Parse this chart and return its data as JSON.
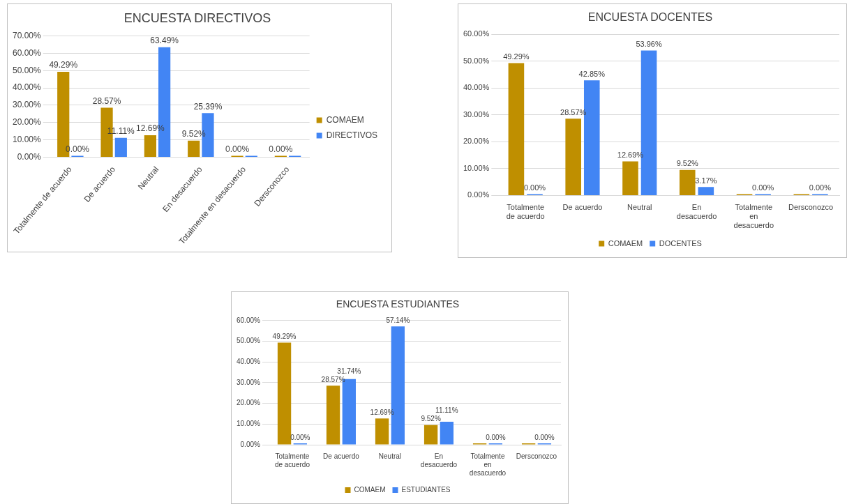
{
  "chart_data": [
    {
      "type": "bar",
      "title": "ENCUESTA DIRECTIVOS",
      "categories": [
        "Totalmente de acuerdo",
        "De acuerdo",
        "Neutral",
        "En desacuerdo",
        "Totalmente en desacuerdo",
        "Dersconozco"
      ],
      "series": [
        {
          "name": "COMAEM",
          "color": "#bf8f00",
          "values": [
            49.29,
            28.57,
            12.69,
            9.52,
            0,
            0
          ],
          "value_labels": [
            "49.29%",
            "28.57%",
            "12.69%",
            "9.52%",
            "0.00%",
            "0.00%"
          ]
        },
        {
          "name": "DIRECTIVOS",
          "color": "#4285f4",
          "values": [
            0,
            11.11,
            63.49,
            25.39,
            0,
            0
          ],
          "value_labels": [
            "0.00%",
            "11.11%",
            "63.49%",
            "25.39%",
            null,
            null
          ]
        }
      ],
      "ylim": [
        0,
        70
      ],
      "yticks": [
        {
          "value": 0,
          "label": "0.00%"
        },
        {
          "value": 10,
          "label": "10.00%"
        },
        {
          "value": 20,
          "label": "20.00%"
        },
        {
          "value": 30,
          "label": "30.00%"
        },
        {
          "value": 40,
          "label": "40.00%"
        },
        {
          "value": 50,
          "label": "50.00%"
        },
        {
          "value": 60,
          "label": "60.00%"
        },
        {
          "value": 70,
          "label": "70.00%"
        }
      ],
      "grid": "y",
      "legend": "right"
    },
    {
      "type": "bar",
      "title": "ENCUESTA DOCENTES",
      "categories": [
        "Totalmente de acuerdo",
        "De acuerdo",
        "Neutral",
        "En desacuerdo",
        "Totalmente en desacuerdo",
        "Dersconozco"
      ],
      "series": [
        {
          "name": "COMAEM",
          "color": "#bf8f00",
          "values": [
            49.29,
            28.57,
            12.69,
            9.52,
            0,
            0
          ],
          "value_labels": [
            "49.29%",
            "28.57%",
            "12.69%",
            "9.52%",
            null,
            null
          ]
        },
        {
          "name": "DOCENTES",
          "color": "#4285f4",
          "values": [
            0,
            42.85,
            53.96,
            3.17,
            0,
            0
          ],
          "value_labels": [
            "0.00%",
            "42.85%",
            "53.96%",
            "3.17%",
            "0.00%",
            "0.00%"
          ]
        }
      ],
      "ylim": [
        0,
        60
      ],
      "yticks": [
        {
          "value": 0,
          "label": "0.00%"
        },
        {
          "value": 10,
          "label": "10.00%"
        },
        {
          "value": 20,
          "label": "20.00%"
        },
        {
          "value": 30,
          "label": "30.00%"
        },
        {
          "value": 40,
          "label": "40.00%"
        },
        {
          "value": 50,
          "label": "50.00%"
        },
        {
          "value": 60,
          "label": "60.00%"
        }
      ],
      "grid": "y",
      "legend": "bottom"
    },
    {
      "type": "bar",
      "title": "ENCUESTA ESTUDIANTES",
      "categories": [
        "Totalmente de acuerdo",
        "De acuerdo",
        "Neutral",
        "En desacuerdo",
        "Totalmente en desacuerdo",
        "Dersconozco"
      ],
      "series": [
        {
          "name": "COMAEM",
          "color": "#bf8f00",
          "values": [
            49.29,
            28.57,
            12.69,
            9.52,
            0,
            0
          ],
          "value_labels": [
            "49.29%",
            "28.57%",
            "12.69%",
            "9.52%",
            null,
            null
          ]
        },
        {
          "name": "ESTUDIANTES",
          "color": "#4285f4",
          "values": [
            0,
            31.74,
            57.14,
            11.11,
            0,
            0
          ],
          "value_labels": [
            "0.00%",
            "31.74%",
            "57.14%",
            "11.11%",
            "0.00%",
            "0.00%"
          ]
        }
      ],
      "ylim": [
        0,
        60
      ],
      "yticks": [
        {
          "value": 0,
          "label": "0.00%"
        },
        {
          "value": 10,
          "label": "10.00%"
        },
        {
          "value": 20,
          "label": "20.00%"
        },
        {
          "value": 30,
          "label": "30.00%"
        },
        {
          "value": 40,
          "label": "40.00%"
        },
        {
          "value": 50,
          "label": "50.00%"
        },
        {
          "value": 60,
          "label": "60.00%"
        }
      ],
      "grid": "y",
      "legend": "bottom"
    }
  ]
}
